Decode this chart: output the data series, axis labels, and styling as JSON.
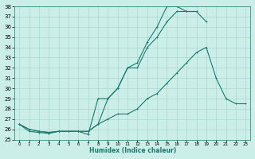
{
  "xlabel": "Humidex (Indice chaleur)",
  "ylabel": "",
  "xlim": [
    -0.5,
    23.5
  ],
  "ylim": [
    25,
    38
  ],
  "yticks": [
    25,
    26,
    27,
    28,
    29,
    30,
    31,
    32,
    33,
    34,
    35,
    36,
    37,
    38
  ],
  "xticks": [
    0,
    1,
    2,
    3,
    4,
    5,
    6,
    7,
    8,
    9,
    10,
    11,
    12,
    13,
    14,
    15,
    16,
    17,
    18,
    19,
    20,
    21,
    22,
    23
  ],
  "bg_color": "#cceee8",
  "grid_color": "#aad8d0",
  "line_color": "#1a7a6e",
  "line1": {
    "x": [
      0,
      1,
      2,
      3,
      4,
      5,
      6,
      7,
      8,
      9,
      10,
      11,
      12,
      13,
      14,
      15,
      16,
      17,
      18,
      19
    ],
    "y": [
      26.5,
      26.0,
      25.8,
      25.7,
      25.8,
      25.8,
      25.8,
      25.5,
      29.0,
      29.0,
      30.0,
      32.0,
      32.0,
      34.0,
      35.0,
      36.5,
      37.5,
      37.5,
      37.5,
      36.5
    ]
  },
  "line2": {
    "x": [
      0,
      1,
      2,
      3,
      4,
      5,
      6,
      7,
      8,
      9,
      10,
      11,
      12,
      13,
      14,
      15,
      16,
      17,
      18
    ],
    "y": [
      26.5,
      25.8,
      25.7,
      25.6,
      25.8,
      25.8,
      25.8,
      25.8,
      26.5,
      29.0,
      30.0,
      32.0,
      32.5,
      34.5,
      36.0,
      38.0,
      38.0,
      37.5,
      37.5
    ]
  },
  "line3": {
    "x": [
      0,
      1,
      2,
      3,
      4,
      5,
      6,
      7,
      8,
      9,
      10,
      11,
      12,
      13,
      14,
      15,
      16,
      17,
      18,
      19,
      20,
      21,
      22,
      23
    ],
    "y": [
      26.5,
      26.0,
      25.8,
      25.7,
      25.8,
      25.8,
      25.8,
      25.8,
      26.5,
      27.0,
      27.5,
      27.5,
      28.0,
      29.0,
      29.5,
      30.5,
      31.5,
      32.5,
      33.5,
      34.0,
      31.0,
      29.0,
      28.5,
      28.5
    ]
  }
}
